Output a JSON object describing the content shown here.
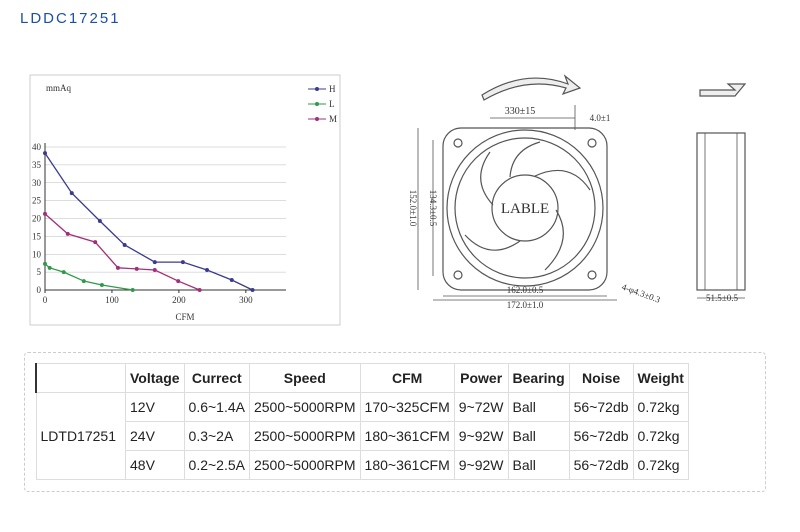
{
  "title": "LDDC17251",
  "performance_chart": {
    "type": "line",
    "y_label": "mmAq",
    "x_label": "CFM",
    "xlim": [
      0,
      360
    ],
    "ylim": [
      0,
      40
    ],
    "xticks": [
      0,
      100,
      200,
      300
    ],
    "yticks": [
      0,
      5,
      10,
      15,
      20,
      25,
      30,
      35,
      40
    ],
    "grid": true,
    "series": [
      {
        "name": "H",
        "color": "#3b3b8e",
        "x": [
          0,
          40,
          82,
          119,
          164,
          206,
          242,
          279,
          310
        ],
        "values": [
          38.3,
          27.1,
          19.3,
          12.6,
          7.8,
          7.8,
          5.6,
          2.8,
          0
        ]
      },
      {
        "name": "L",
        "color": "#2e9a4a",
        "x": [
          0,
          7,
          28,
          58,
          85,
          131
        ],
        "values": [
          7.3,
          6.2,
          5,
          2.5,
          1.4,
          0
        ]
      },
      {
        "name": "M",
        "color": "#a0307a",
        "x": [
          0,
          34,
          75,
          109,
          137,
          164,
          199,
          231
        ],
        "values": [
          21.3,
          15.7,
          13.4,
          6.2,
          5.9,
          5.6,
          2.5,
          0
        ]
      }
    ]
  },
  "drawing": {
    "labels": [
      "330±15",
      "4.0±1",
      "152.0±1.0",
      "134.3±0.5",
      "LABLE",
      "162.0±0.5",
      "172.0±1.0",
      "4-φ4.3±0.3",
      "51.5±0.5"
    ]
  },
  "table": {
    "header": [
      "Voltage",
      "Currect",
      "Speed",
      "CFM",
      "Power",
      "Bearing",
      "Noise",
      "Weight"
    ],
    "model": "LDTD17251",
    "rows": [
      [
        "12V",
        "0.6~1.4A",
        "2500~5000RPM",
        "170~325CFM",
        "9~72W",
        "Ball",
        "56~72db",
        "0.72kg"
      ],
      [
        "24V",
        "0.3~2A",
        "2500~5000RPM",
        "180~361CFM",
        "9~92W",
        "Ball",
        "56~72db",
        "0.72kg"
      ],
      [
        "48V",
        "0.2~2.5A",
        "2500~5000RPM",
        "180~361CFM",
        "9~92W",
        "Ball",
        "56~72db",
        "0.72kg"
      ]
    ]
  }
}
